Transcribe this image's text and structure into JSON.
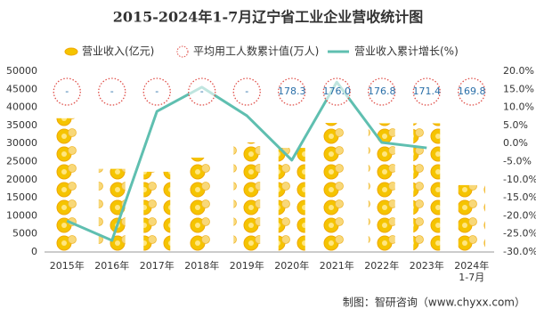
{
  "chart_data": {
    "type": "bar-line",
    "title": "2015-2024年1-7月辽宁省工业企业营收统计图",
    "categories": [
      "2015年",
      "2016年",
      "2017年",
      "2018年",
      "2019年",
      "2020年",
      "2021年",
      "2022年",
      "2023年",
      "2024年1-7月"
    ],
    "series": [
      {
        "name": "营业收入(亿元)",
        "type": "bar",
        "color": "#f5c400",
        "values": [
          37000,
          23000,
          22200,
          26100,
          30300,
          28800,
          35700,
          35600,
          35600,
          18500
        ]
      },
      {
        "name": "平均用工人数累计值(万人)",
        "type": "label",
        "color": "#e0504a",
        "values": [
          null,
          null,
          null,
          null,
          null,
          178.3,
          176.0,
          176.8,
          171.4,
          169.8
        ],
        "value_labels": [
          "-",
          "-",
          "-",
          "-",
          "-",
          "178.3",
          "176.0",
          "176.8",
          "171.4",
          "169.8"
        ]
      },
      {
        "name": "营业收入累计增长(%)",
        "type": "line",
        "axis": "y2",
        "color": "#5fbfb0",
        "values": [
          -21.4,
          -26.8,
          8.9,
          15.6,
          7.7,
          -4.6,
          17.0,
          0.3,
          -1.2,
          null
        ]
      }
    ],
    "ylim": [
      0,
      50000
    ],
    "yticks": [
      0,
      5000,
      10000,
      15000,
      20000,
      25000,
      30000,
      35000,
      40000,
      45000,
      50000
    ],
    "y2lim": [
      -30,
      20
    ],
    "y2ticks": [
      {
        "value": -30,
        "label": "-30.0%"
      },
      {
        "value": -25,
        "label": "-25.0%"
      },
      {
        "value": -20,
        "label": "-20.0%"
      },
      {
        "value": -15,
        "label": "-15.0%"
      },
      {
        "value": -10,
        "label": "-10.0%"
      },
      {
        "value": -5,
        "label": "-5.0%"
      },
      {
        "value": 0,
        "label": "0.0%"
      },
      {
        "value": 5,
        "label": "5.0%"
      },
      {
        "value": 10,
        "label": "10.0%"
      },
      {
        "value": 15,
        "label": "15.0%"
      },
      {
        "value": 20,
        "label": "20.0%"
      }
    ],
    "source": "制图：智研咨询（www.chyxx.com）"
  }
}
